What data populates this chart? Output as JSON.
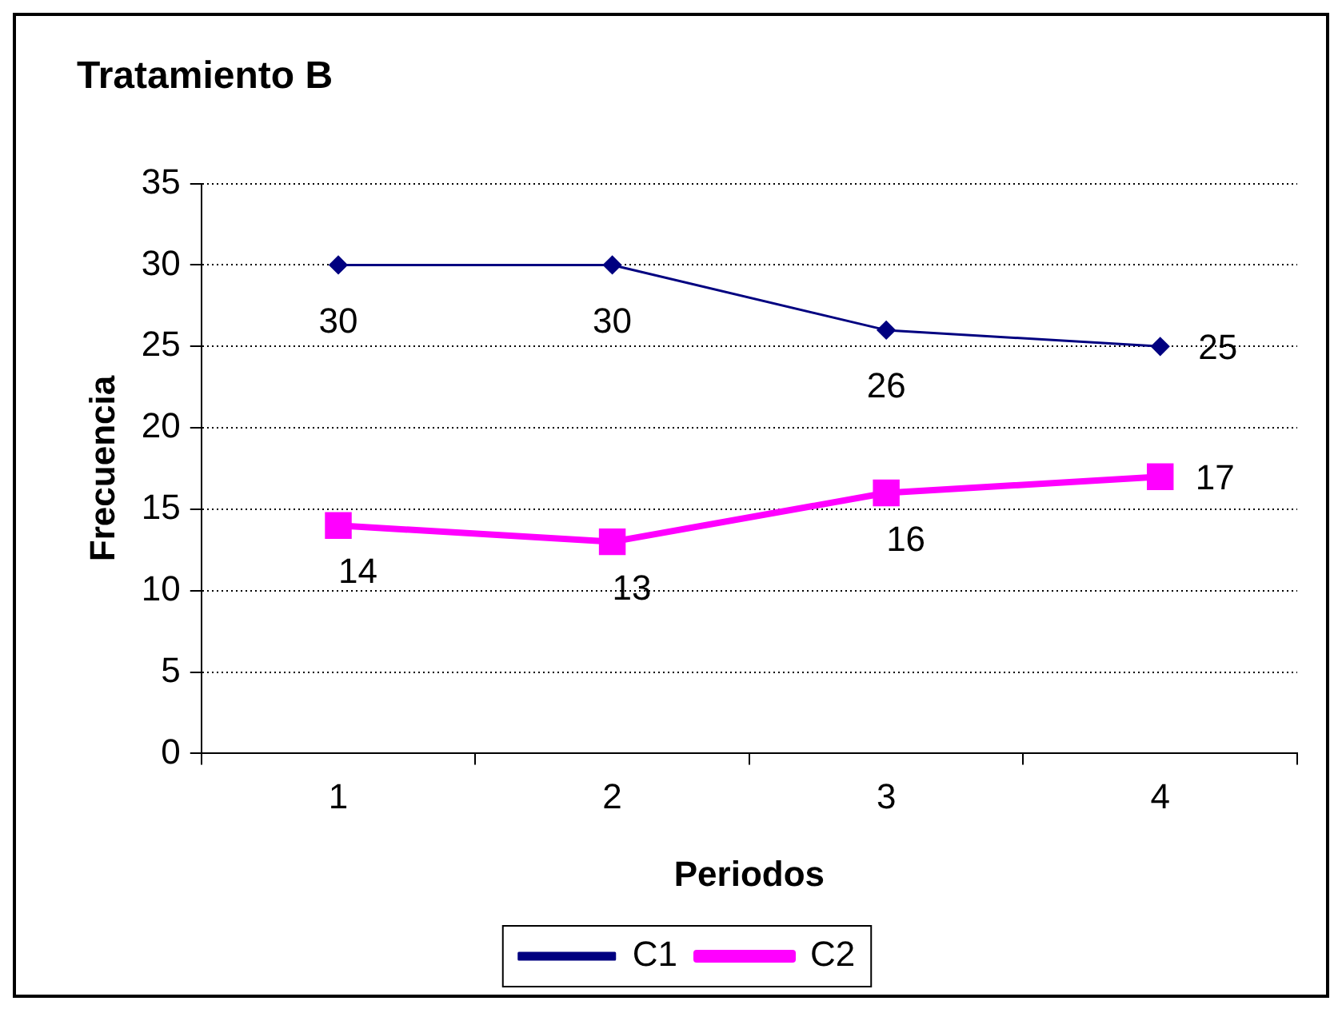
{
  "chart_data": {
    "type": "line",
    "title": "Tratamiento B",
    "xlabel": "Periodos",
    "ylabel": "Frecuencia",
    "categories": [
      "1",
      "2",
      "3",
      "4"
    ],
    "series": [
      {
        "name": "C1",
        "color": "#000080",
        "values": [
          30,
          30,
          26,
          25
        ],
        "marker": "diamond"
      },
      {
        "name": "C2",
        "color": "#ff00ff",
        "values": [
          14,
          13,
          16,
          17
        ],
        "marker": "square"
      }
    ],
    "ylim": [
      0,
      35
    ],
    "yticks": [
      0,
      5,
      10,
      15,
      20,
      25,
      30,
      35
    ],
    "grid": "y",
    "legend": "bottom",
    "data_labels": true
  }
}
